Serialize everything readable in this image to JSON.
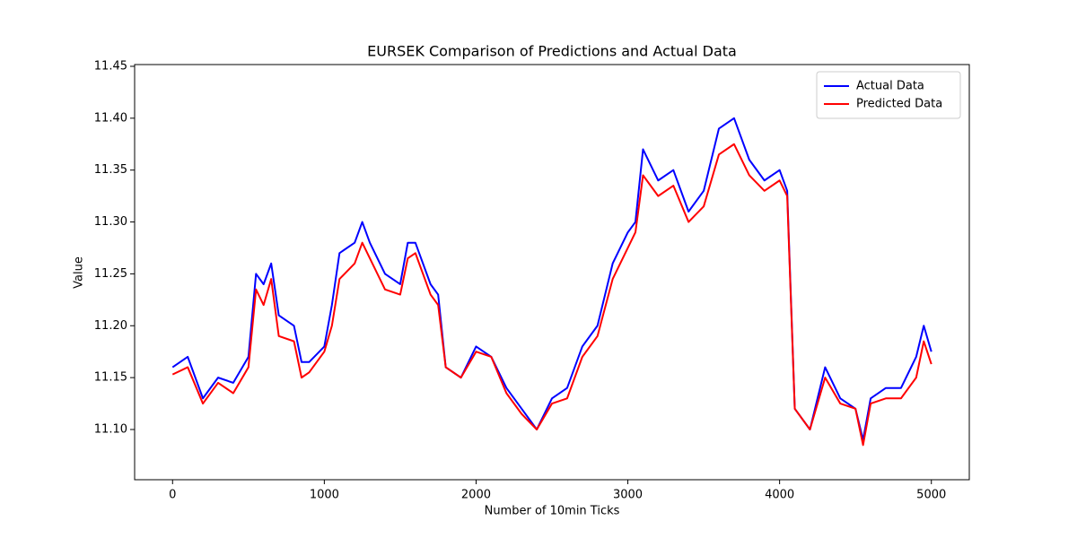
{
  "chart_data": {
    "type": "line",
    "title": "EURSEK Comparison of Predictions and Actual Data",
    "xlabel": "Number of 10min Ticks",
    "ylabel": "Value",
    "x": [
      0,
      100,
      200,
      300,
      400,
      500,
      550,
      600,
      650,
      700,
      800,
      850,
      900,
      1000,
      1050,
      1100,
      1200,
      1250,
      1300,
      1400,
      1500,
      1550,
      1600,
      1700,
      1750,
      1800,
      1900,
      2000,
      2100,
      2200,
      2300,
      2400,
      2500,
      2600,
      2700,
      2800,
      2900,
      3000,
      3050,
      3100,
      3200,
      3300,
      3400,
      3500,
      3600,
      3700,
      3800,
      3900,
      4000,
      4050,
      4100,
      4200,
      4300,
      4400,
      4500,
      4550,
      4600,
      4700,
      4800,
      4900,
      4950,
      5000
    ],
    "series": [
      {
        "name": "Actual Data",
        "color": "#0000ff",
        "values": [
          11.16,
          11.17,
          11.13,
          11.15,
          11.145,
          11.17,
          11.25,
          11.24,
          11.26,
          11.21,
          11.2,
          11.165,
          11.165,
          11.18,
          11.22,
          11.27,
          11.28,
          11.3,
          11.28,
          11.25,
          11.24,
          11.28,
          11.28,
          11.24,
          11.23,
          11.16,
          11.15,
          11.18,
          11.17,
          11.14,
          11.12,
          11.1,
          11.13,
          11.14,
          11.18,
          11.2,
          11.26,
          11.29,
          11.3,
          11.37,
          11.34,
          11.35,
          11.31,
          11.33,
          11.39,
          11.4,
          11.36,
          11.34,
          11.35,
          11.33,
          11.12,
          11.1,
          11.16,
          11.13,
          11.12,
          11.09,
          11.13,
          11.14,
          11.14,
          11.17,
          11.2,
          11.175
        ]
      },
      {
        "name": "Predicted Data",
        "color": "#ff0000",
        "values": [
          11.153,
          11.16,
          11.125,
          11.145,
          11.135,
          11.16,
          11.235,
          11.22,
          11.245,
          11.19,
          11.185,
          11.15,
          11.155,
          11.175,
          11.2,
          11.245,
          11.26,
          11.28,
          11.265,
          11.235,
          11.23,
          11.265,
          11.27,
          11.23,
          11.22,
          11.16,
          11.15,
          11.175,
          11.17,
          11.135,
          11.115,
          11.1,
          11.125,
          11.13,
          11.17,
          11.19,
          11.245,
          11.275,
          11.29,
          11.345,
          11.325,
          11.335,
          11.3,
          11.315,
          11.365,
          11.375,
          11.345,
          11.33,
          11.34,
          11.325,
          11.12,
          11.1,
          11.15,
          11.125,
          11.12,
          11.085,
          11.125,
          11.13,
          11.13,
          11.15,
          11.185,
          11.163
        ]
      }
    ],
    "xlim": [
      -250,
      5250
    ],
    "ylim": [
      11.0516,
      11.4517
    ],
    "xticks": [
      0,
      1000,
      2000,
      3000,
      4000,
      5000
    ],
    "yticks": [
      {
        "value": 11.1,
        "label": "11.10"
      },
      11.15,
      {
        "value": 11.2,
        "label": "11.20"
      },
      11.25,
      {
        "value": 11.3,
        "label": "11.30"
      },
      11.35,
      {
        "value": 11.4,
        "label": "11.40"
      },
      11.45
    ],
    "legend": "upper right",
    "grid": false
  }
}
